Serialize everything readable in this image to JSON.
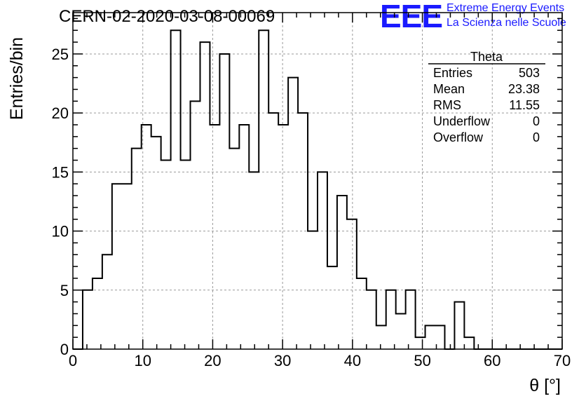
{
  "header": {
    "title": "CERN-02-2020-03-08-00069",
    "logo_mark": "EEE",
    "logo_line1": "Extreme Energy Events",
    "logo_line2": "La Scienza nelle Scuole",
    "logo_color": "#1a1aff"
  },
  "stats_box": {
    "title": "Theta",
    "rows": [
      {
        "label": "Entries",
        "value": "503"
      },
      {
        "label": "Mean",
        "value": "23.38"
      },
      {
        "label": "RMS",
        "value": "11.55"
      },
      {
        "label": "Underflow",
        "value": "0"
      },
      {
        "label": "Overflow",
        "value": "0"
      }
    ]
  },
  "chart_data": {
    "type": "bar",
    "style": "step-histogram",
    "xlabel": "θ [°]",
    "ylabel": "Entries/bin",
    "xlim": [
      0,
      70
    ],
    "ylim": [
      0,
      28.5
    ],
    "xticks": [
      0,
      10,
      20,
      30,
      40,
      50,
      60,
      70
    ],
    "yticks": [
      0,
      5,
      10,
      15,
      20,
      25
    ],
    "grid": true,
    "bin_width": 1.4,
    "bin_start": 0,
    "values": [
      0,
      5,
      6,
      8,
      14,
      14,
      17,
      19,
      18,
      16,
      27,
      16,
      21,
      26,
      19,
      25,
      17,
      19,
      15,
      27,
      20,
      19,
      23,
      20,
      10,
      15,
      7,
      13,
      11,
      6,
      5,
      2,
      5,
      3,
      5,
      1,
      2,
      2,
      0,
      4,
      1,
      0,
      0,
      0,
      0,
      0,
      0,
      0,
      0,
      0
    ],
    "line_color": "#000000"
  }
}
